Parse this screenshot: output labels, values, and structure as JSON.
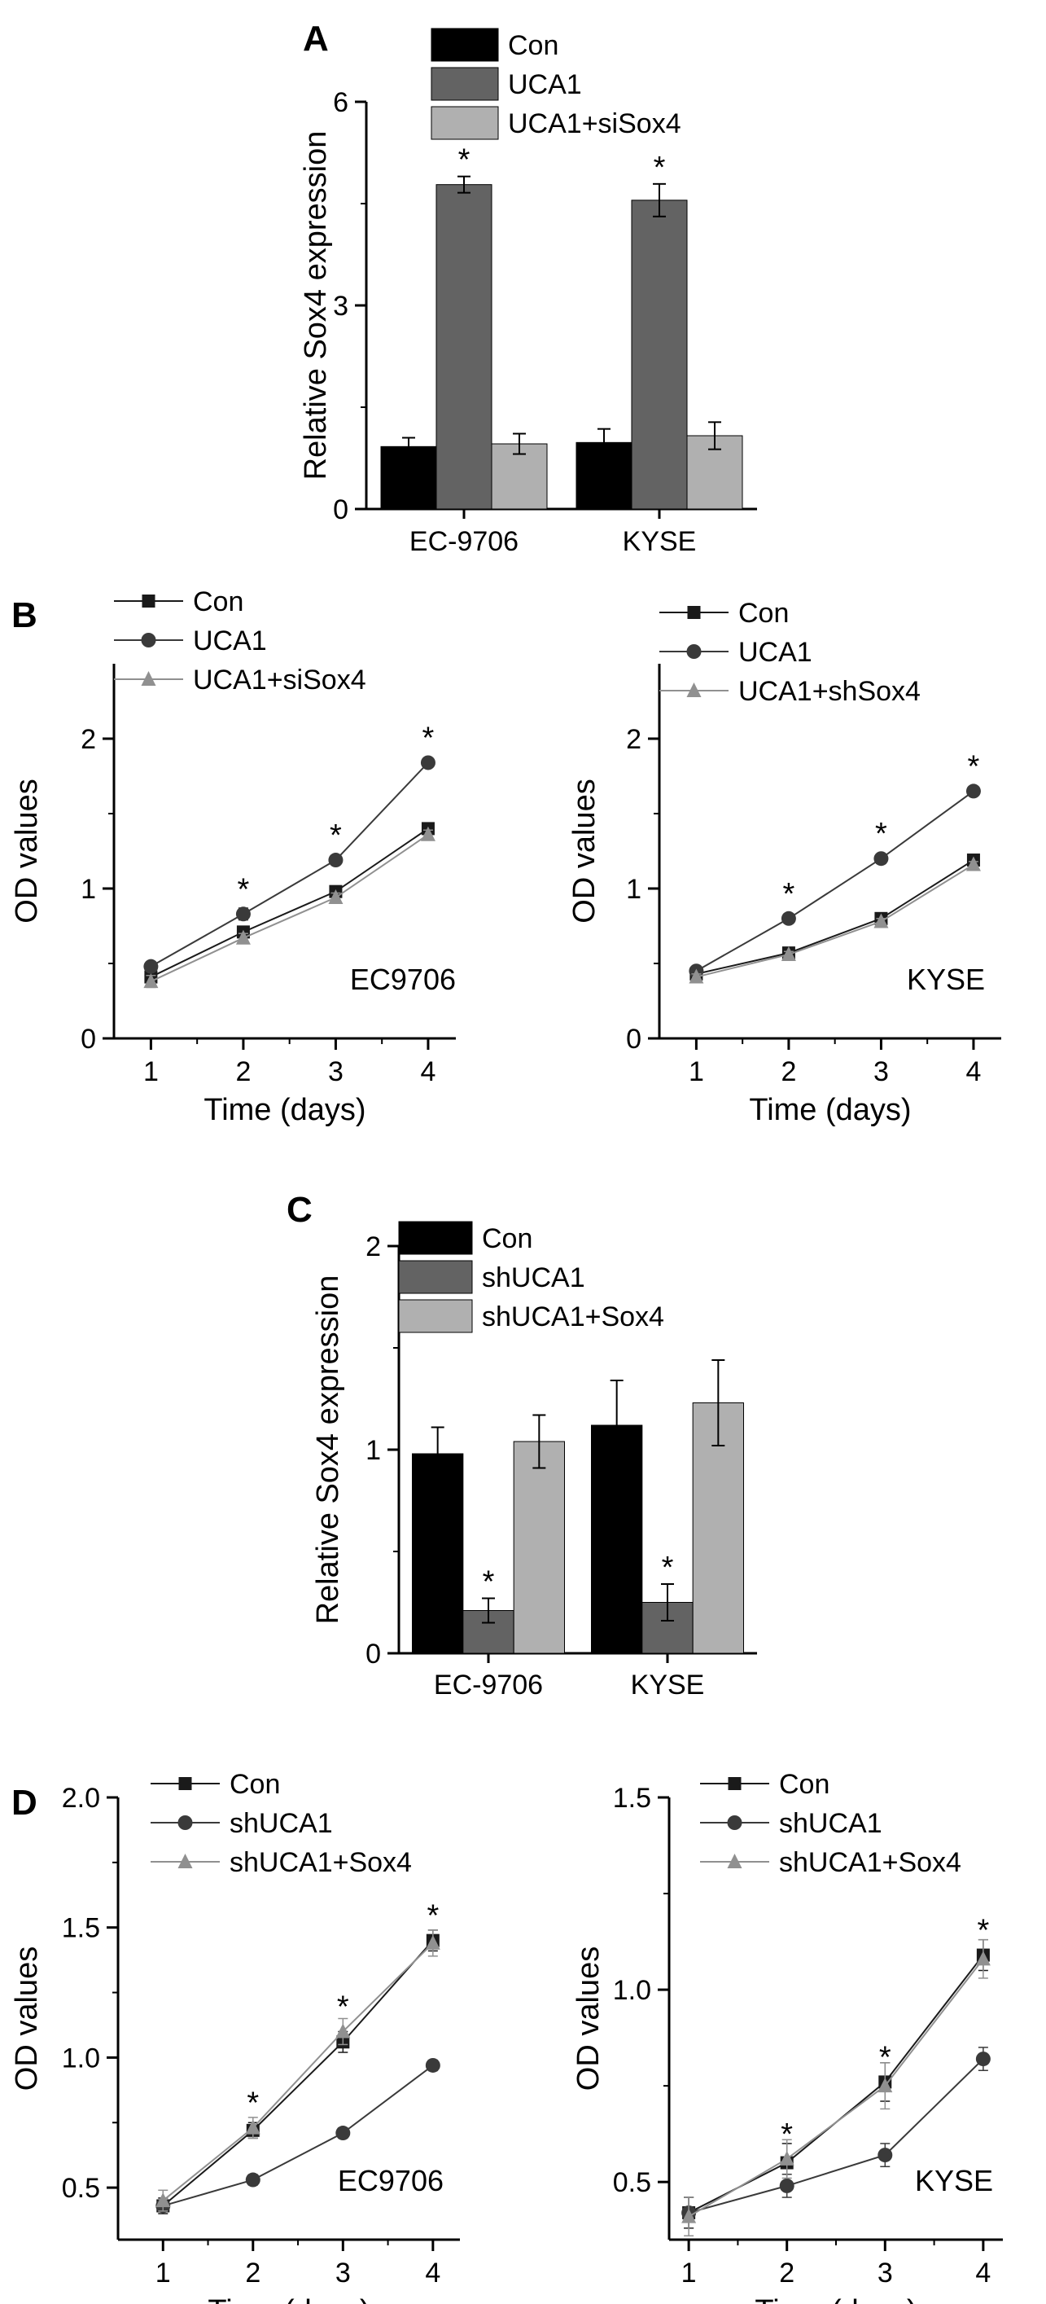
{
  "panels": {
    "A": "A",
    "B": "B",
    "C": "C",
    "D": "D"
  },
  "chart_data": [
    {
      "id": "A",
      "type": "bar",
      "ylabel": "Relative Sox4 expression",
      "xlabel": "",
      "ylim": [
        0,
        6
      ],
      "yticks": [
        0,
        3,
        6
      ],
      "categories": [
        "EC-9706",
        "KYSE"
      ],
      "series": [
        {
          "name": "Con",
          "color": "#000000",
          "values": [
            0.92,
            0.98
          ],
          "errors": [
            0.13,
            0.2
          ]
        },
        {
          "name": "UCA1",
          "color": "#636363",
          "values": [
            4.78,
            4.55
          ],
          "errors": [
            0.12,
            0.24
          ]
        },
        {
          "name": "UCA1+siSox4",
          "color": "#b0b0b0",
          "values": [
            0.96,
            1.08
          ],
          "errors": [
            0.15,
            0.2
          ]
        }
      ],
      "sig": [
        {
          "series": 1,
          "category": 0,
          "text": "*"
        },
        {
          "series": 1,
          "category": 1,
          "text": "*"
        }
      ]
    },
    {
      "id": "B-left",
      "type": "line",
      "ylabel": "OD values",
      "xlabel": "Time (days)",
      "annotation": "EC9706",
      "xlim": [
        0.6,
        4.3
      ],
      "ylim": [
        0,
        2.5
      ],
      "yticks": [
        0,
        1,
        2
      ],
      "x": [
        1,
        2,
        3,
        4
      ],
      "series": [
        {
          "name": "Con",
          "marker": "square",
          "color": "#1a1a1a",
          "values": [
            0.41,
            0.71,
            0.98,
            1.4
          ],
          "errors": [
            0.03,
            0.03,
            0.03,
            0.03
          ]
        },
        {
          "name": "UCA1",
          "marker": "circle",
          "color": "#3a3a3a",
          "values": [
            0.48,
            0.83,
            1.19,
            1.84
          ],
          "errors": [
            0.03,
            0.04,
            0.03,
            0.03
          ]
        },
        {
          "name": "UCA1+siSox4",
          "marker": "triangle",
          "color": "#909090",
          "values": [
            0.38,
            0.67,
            0.94,
            1.36
          ],
          "errors": [
            0.04,
            0.03,
            0.03,
            0.03
          ]
        }
      ],
      "sig": [
        {
          "x": 2,
          "y": 0.83,
          "text": "*"
        },
        {
          "x": 3,
          "y": 1.19,
          "text": "*"
        },
        {
          "x": 4,
          "y": 1.84,
          "text": "*"
        }
      ]
    },
    {
      "id": "B-right",
      "type": "line",
      "ylabel": "OD values",
      "xlabel": "Time (days)",
      "annotation": "KYSE",
      "xlim": [
        0.6,
        4.3
      ],
      "ylim": [
        0,
        2.5
      ],
      "yticks": [
        0,
        1,
        2
      ],
      "x": [
        1,
        2,
        3,
        4
      ],
      "series": [
        {
          "name": "Con",
          "marker": "square",
          "color": "#1a1a1a",
          "values": [
            0.43,
            0.57,
            0.8,
            1.19
          ],
          "errors": [
            0.02,
            0.02,
            0.02,
            0.02
          ]
        },
        {
          "name": "UCA1",
          "marker": "circle",
          "color": "#3a3a3a",
          "values": [
            0.45,
            0.8,
            1.2,
            1.65
          ],
          "errors": [
            0.02,
            0.02,
            0.02,
            0.02
          ]
        },
        {
          "name": "UCA1+shSox4",
          "marker": "triangle",
          "color": "#909090",
          "values": [
            0.41,
            0.56,
            0.78,
            1.16
          ],
          "errors": [
            0.02,
            0.02,
            0.02,
            0.02
          ]
        }
      ],
      "sig": [
        {
          "x": 2,
          "y": 0.8,
          "text": "*"
        },
        {
          "x": 3,
          "y": 1.2,
          "text": "*"
        },
        {
          "x": 4,
          "y": 1.65,
          "text": "*"
        }
      ]
    },
    {
      "id": "C",
      "type": "bar",
      "ylabel": "Relative Sox4 expression",
      "xlabel": "",
      "ylim": [
        0,
        2
      ],
      "yticks": [
        0,
        1,
        2
      ],
      "categories": [
        "EC-9706",
        "KYSE"
      ],
      "series": [
        {
          "name": "Con",
          "color": "#000000",
          "values": [
            0.98,
            1.12
          ],
          "errors": [
            0.13,
            0.22
          ]
        },
        {
          "name": "shUCA1",
          "color": "#636363",
          "values": [
            0.21,
            0.25
          ],
          "errors": [
            0.06,
            0.09
          ]
        },
        {
          "name": "shUCA1+Sox4",
          "color": "#b0b0b0",
          "values": [
            1.04,
            1.23
          ],
          "errors": [
            0.13,
            0.21
          ]
        }
      ],
      "sig": [
        {
          "series": 1,
          "category": 0,
          "text": "*"
        },
        {
          "series": 1,
          "category": 1,
          "text": "*"
        }
      ]
    },
    {
      "id": "D-left",
      "type": "line",
      "ylabel": "OD values",
      "xlabel": "Time (days)",
      "annotation": "EC9706",
      "xlim": [
        0.5,
        4.3
      ],
      "ylim": [
        0.3,
        2.0
      ],
      "yticks": [
        0.5,
        1.0,
        1.5,
        2.0
      ],
      "yformat": 1,
      "x": [
        1,
        2,
        3,
        4
      ],
      "series": [
        {
          "name": "Con",
          "marker": "square",
          "color": "#1a1a1a",
          "values": [
            0.43,
            0.72,
            1.06,
            1.45
          ],
          "errors": [
            0.03,
            0.03,
            0.04,
            0.04
          ]
        },
        {
          "name": "shUCA1",
          "marker": "circle",
          "color": "#3a3a3a",
          "values": [
            0.43,
            0.53,
            0.71,
            0.97
          ],
          "errors": [
            0.02,
            0.02,
            0.02,
            0.02
          ]
        },
        {
          "name": "shUCA1+Sox4",
          "marker": "triangle",
          "color": "#909090",
          "values": [
            0.45,
            0.73,
            1.1,
            1.44
          ],
          "errors": [
            0.04,
            0.04,
            0.05,
            0.05
          ]
        }
      ],
      "sig": [
        {
          "x": 2,
          "y": 0.73,
          "text": "*"
        },
        {
          "x": 3,
          "y": 1.1,
          "text": "*"
        },
        {
          "x": 4,
          "y": 1.45,
          "text": "*"
        }
      ]
    },
    {
      "id": "D-right",
      "type": "line",
      "ylabel": "OD values",
      "xlabel": "Time (days)",
      "annotation": "KYSE",
      "xlim": [
        0.8,
        4.2
      ],
      "ylim": [
        0.35,
        1.5
      ],
      "yticks": [
        0.5,
        1.0,
        1.5
      ],
      "yformat": 1,
      "x": [
        1,
        2,
        3,
        4
      ],
      "series": [
        {
          "name": "Con",
          "marker": "square",
          "color": "#1a1a1a",
          "values": [
            0.42,
            0.55,
            0.76,
            1.09
          ],
          "errors": [
            0.04,
            0.05,
            0.05,
            0.04
          ]
        },
        {
          "name": "shUCA1",
          "marker": "circle",
          "color": "#3a3a3a",
          "values": [
            0.42,
            0.49,
            0.57,
            0.82
          ],
          "errors": [
            0.04,
            0.03,
            0.03,
            0.03
          ]
        },
        {
          "name": "shUCA1+Sox4",
          "marker": "triangle",
          "color": "#909090",
          "values": [
            0.41,
            0.56,
            0.75,
            1.08
          ],
          "errors": [
            0.05,
            0.05,
            0.06,
            0.05
          ]
        }
      ],
      "sig": [
        {
          "x": 2,
          "y": 0.56,
          "text": "*"
        },
        {
          "x": 3,
          "y": 0.76,
          "text": "*"
        },
        {
          "x": 4,
          "y": 1.09,
          "text": "*"
        }
      ]
    }
  ]
}
